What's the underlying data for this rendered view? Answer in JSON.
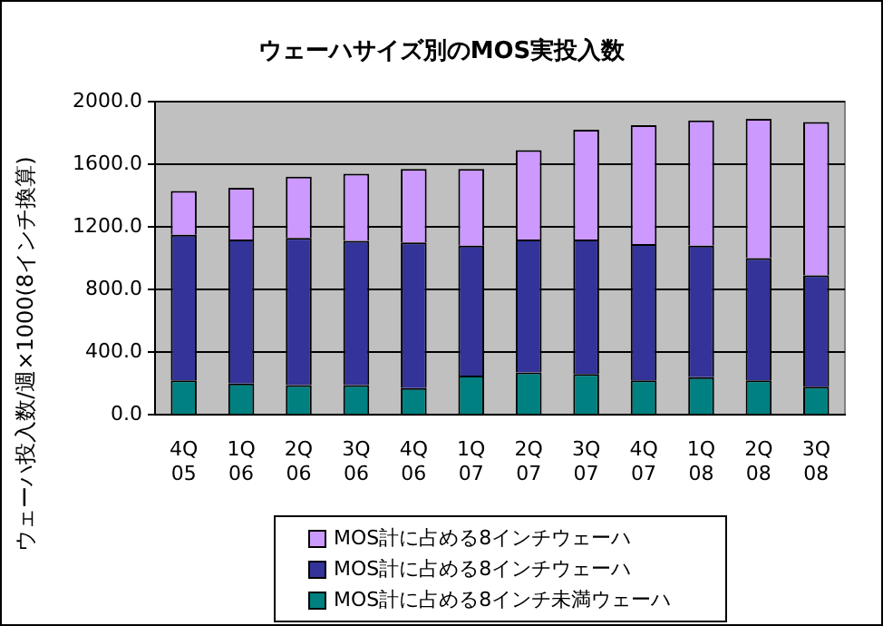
{
  "chart_data": {
    "type": "bar",
    "title": "ウェーハサイズ別のMOS実投入数",
    "ylabel": "ウェーハ投入数/週×1000(8インチ換算)",
    "categories": [
      "4Q 05",
      "1Q 06",
      "2Q 06",
      "3Q 06",
      "4Q 06",
      "1Q 07",
      "2Q 07",
      "3Q 07",
      "4Q 07",
      "1Q 08",
      "2Q 08",
      "3Q 08"
    ],
    "stacked": true,
    "series": [
      {
        "name": "MOS計に占める8インチ未満ウェーハ",
        "color": "#008080",
        "values": [
          220,
          200,
          190,
          190,
          170,
          250,
          270,
          260,
          220,
          240,
          220,
          180
        ]
      },
      {
        "name": "MOS計に占める8インチウェーハ",
        "color": "#333399",
        "values": [
          930,
          920,
          940,
          920,
          930,
          830,
          850,
          860,
          870,
          840,
          780,
          710
        ]
      },
      {
        "name": "MOS計に占める8インチウェーハ",
        "color": "#cc99ff",
        "values": [
          280,
          330,
          390,
          430,
          470,
          490,
          570,
          700,
          760,
          800,
          890,
          980
        ]
      }
    ],
    "ylim": [
      0,
      2000
    ],
    "yticks": [
      {
        "value": 0,
        "label": "0.0"
      },
      {
        "value": 400,
        "label": "400.0"
      },
      {
        "value": 800,
        "label": "800.0"
      },
      {
        "value": 1200,
        "label": "1200.0"
      },
      {
        "value": 1600,
        "label": "1600.0"
      },
      {
        "value": 2000,
        "label": "2000.0"
      }
    ],
    "grid": "y",
    "legend": "bottom"
  }
}
